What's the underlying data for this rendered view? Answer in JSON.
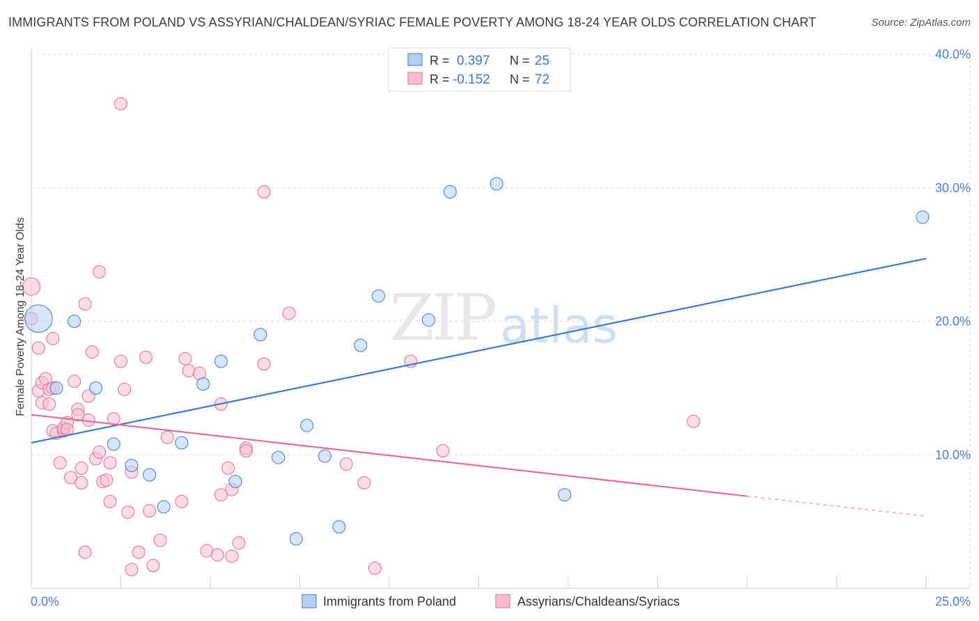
{
  "title": "IMMIGRANTS FROM POLAND VS ASSYRIAN/CHALDEAN/SYRIAC FEMALE POVERTY AMONG 18-24 YEAR OLDS CORRELATION CHART",
  "source": "Source: ZipAtlas.com",
  "watermark": {
    "zip": "ZIP",
    "atlas": "atlas"
  },
  "colors": {
    "blue": "#3a78d4",
    "blue_fill": "#b7d0f2",
    "pink": "#e46c96",
    "pink_fill": "#f6bfd0",
    "axis_label": "#4a7fd4",
    "grid": "#dddddd"
  },
  "legend_box": {
    "series1": {
      "r_label": "R =",
      "r_value": "0.397",
      "n_label": "N =",
      "n_value": "25"
    },
    "series2": {
      "r_label": "R =",
      "r_value": "-0.152",
      "n_label": "N =",
      "n_value": "72"
    }
  },
  "chart_data": {
    "type": "scatter",
    "title": "IMMIGRANTS FROM POLAND VS ASSYRIAN/CHALDEAN/SYRIAC FEMALE POVERTY AMONG 18-24 YEAR OLDS CORRELATION CHART",
    "xlabel": "",
    "ylabel": "Female Poverty Among 18-24 Year Olds",
    "xlim": [
      0,
      25
    ],
    "ylim": [
      0,
      40
    ],
    "x_tick_labels": [
      "0.0%",
      "25.0%"
    ],
    "y_ticks": [
      10,
      20,
      30,
      40
    ],
    "y_tick_labels": [
      "10.0%",
      "20.0%",
      "30.0%",
      "40.0%"
    ],
    "grid": true,
    "legend_position": "bottom",
    "series": [
      {
        "name": "Immigrants from Poland",
        "color": "#3a78d4",
        "r": 0.397,
        "n": 25,
        "trend": {
          "x0": 0,
          "y0": 10.9,
          "x1": 25,
          "y1": 24.7
        },
        "points": [
          [
            0.2,
            20.2,
            2.2
          ],
          [
            1.2,
            20.0,
            1
          ],
          [
            0.7,
            15.0,
            1
          ],
          [
            1.8,
            15.0,
            1
          ],
          [
            2.3,
            10.8,
            1
          ],
          [
            2.8,
            9.2,
            1
          ],
          [
            3.3,
            8.5,
            1
          ],
          [
            3.7,
            6.1,
            1
          ],
          [
            4.2,
            10.9,
            1
          ],
          [
            4.8,
            15.3,
            1
          ],
          [
            5.3,
            17.0,
            1
          ],
          [
            5.7,
            8.0,
            1
          ],
          [
            6.4,
            19.0,
            1
          ],
          [
            6.9,
            9.8,
            1
          ],
          [
            7.4,
            3.7,
            1
          ],
          [
            7.7,
            12.2,
            1
          ],
          [
            8.2,
            9.9,
            1
          ],
          [
            8.6,
            4.6,
            1
          ],
          [
            9.2,
            18.2,
            1
          ],
          [
            9.7,
            21.9,
            1
          ],
          [
            11.1,
            20.1,
            1
          ],
          [
            11.7,
            29.7,
            1
          ],
          [
            13.0,
            30.3,
            1
          ],
          [
            14.9,
            7.0,
            1
          ],
          [
            24.9,
            27.8,
            1
          ]
        ]
      },
      {
        "name": "Assyrians/Chaldeans/Syriacs",
        "color": "#e46c96",
        "r": -0.152,
        "n": 72,
        "trend": {
          "x0": 0,
          "y0": 13.0,
          "x1": 20,
          "y1": 6.9
        },
        "trend_dashed": {
          "x0": 20,
          "y0": 6.9,
          "x1": 25,
          "y1": 5.4
        },
        "points": [
          [
            0.0,
            22.6,
            1.4
          ],
          [
            0.0,
            20.2,
            1
          ],
          [
            0.2,
            18.0,
            1
          ],
          [
            0.2,
            14.8,
            1
          ],
          [
            0.3,
            13.9,
            1
          ],
          [
            0.3,
            15.4,
            1
          ],
          [
            0.4,
            15.7,
            1
          ],
          [
            0.5,
            13.8,
            1
          ],
          [
            0.5,
            14.9,
            1
          ],
          [
            0.6,
            18.7,
            1
          ],
          [
            0.6,
            15.0,
            1
          ],
          [
            0.6,
            11.8,
            1
          ],
          [
            0.7,
            11.6,
            1
          ],
          [
            0.8,
            9.4,
            1
          ],
          [
            0.9,
            11.8,
            1
          ],
          [
            0.9,
            12.0,
            1
          ],
          [
            1.0,
            12.4,
            1
          ],
          [
            1.0,
            11.9,
            1
          ],
          [
            1.1,
            8.3,
            1
          ],
          [
            1.2,
            15.5,
            1
          ],
          [
            1.3,
            13.4,
            1
          ],
          [
            1.3,
            13.0,
            1
          ],
          [
            1.4,
            7.9,
            1
          ],
          [
            1.4,
            9.0,
            1
          ],
          [
            1.5,
            21.3,
            1
          ],
          [
            1.5,
            2.7,
            1
          ],
          [
            1.6,
            12.6,
            1
          ],
          [
            1.6,
            14.4,
            1
          ],
          [
            1.7,
            17.7,
            1
          ],
          [
            1.8,
            9.7,
            1
          ],
          [
            1.9,
            23.7,
            1
          ],
          [
            1.9,
            10.2,
            1
          ],
          [
            2.0,
            8.0,
            1
          ],
          [
            2.1,
            8.1,
            1
          ],
          [
            2.2,
            6.5,
            1
          ],
          [
            2.2,
            9.4,
            1
          ],
          [
            2.3,
            12.7,
            1
          ],
          [
            2.5,
            36.3,
            1
          ],
          [
            2.5,
            17.0,
            1
          ],
          [
            2.6,
            14.9,
            1
          ],
          [
            2.7,
            5.7,
            1
          ],
          [
            2.8,
            8.7,
            1
          ],
          [
            2.8,
            1.4,
            1
          ],
          [
            3.0,
            2.7,
            1
          ],
          [
            3.2,
            17.3,
            1
          ],
          [
            3.3,
            5.8,
            1
          ],
          [
            3.4,
            1.7,
            1
          ],
          [
            3.6,
            3.6,
            1
          ],
          [
            3.8,
            11.3,
            1
          ],
          [
            4.2,
            6.5,
            1
          ],
          [
            4.3,
            17.2,
            1
          ],
          [
            4.4,
            16.3,
            1
          ],
          [
            4.7,
            16.1,
            1
          ],
          [
            4.9,
            2.8,
            1
          ],
          [
            5.2,
            2.5,
            1
          ],
          [
            5.3,
            13.8,
            1
          ],
          [
            5.3,
            7.0,
            1
          ],
          [
            5.5,
            9.0,
            1
          ],
          [
            5.6,
            7.4,
            1
          ],
          [
            5.6,
            2.4,
            1
          ],
          [
            5.8,
            3.4,
            1
          ],
          [
            6.0,
            10.5,
            1
          ],
          [
            6.0,
            10.3,
            1
          ],
          [
            6.5,
            29.7,
            1
          ],
          [
            6.5,
            16.8,
            1
          ],
          [
            7.2,
            20.6,
            1
          ],
          [
            8.8,
            9.3,
            1
          ],
          [
            9.3,
            7.9,
            1
          ],
          [
            9.6,
            1.5,
            1
          ],
          [
            10.6,
            17.0,
            1
          ],
          [
            11.5,
            10.3,
            1
          ],
          [
            18.5,
            12.5,
            1
          ]
        ]
      }
    ]
  }
}
